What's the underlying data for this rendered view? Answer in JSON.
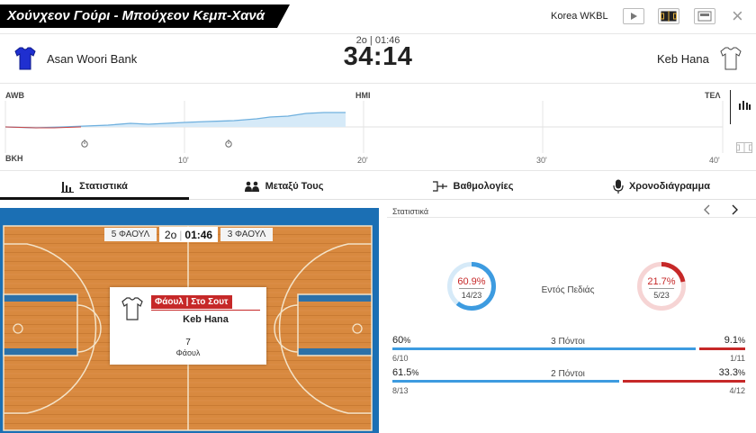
{
  "header": {
    "match_title": "Χούνχεον Γούρι - Μπούχεον Κεμπ-Χανά",
    "league": "Korea WKBL",
    "buttons": [
      "play-icon",
      "court-icon",
      "layout-icon",
      "close-icon"
    ]
  },
  "score": {
    "home_team": "Asan Woori Bank",
    "away_team": "Keb Hana",
    "period_clock": "2o | 01:46",
    "score": "34:14"
  },
  "timeline": {
    "home_abbr": "AWB",
    "away_abbr": "BKH",
    "half_label": "HMI",
    "end_label": "ΤΕΛ",
    "ticks": [
      "10'",
      "20'",
      "30'",
      "40'"
    ]
  },
  "tabs": [
    {
      "label": "Στατιστικά",
      "icon": "bar-chart-icon",
      "active": true
    },
    {
      "label": "Μεταξύ Τους",
      "icon": "people-icon",
      "active": false
    },
    {
      "label": "Βαθμολογίες",
      "icon": "bracket-icon",
      "active": false
    },
    {
      "label": "Χρονοδιάγραμμα",
      "icon": "microphone-icon",
      "active": false
    }
  ],
  "court": {
    "home_fouls": "5 ΦΑΟΥΛ",
    "period": "2o",
    "clock": "01:46",
    "away_fouls": "3 ΦΑΟΥΛ",
    "event_title": "Φάουλ | Στο Σουτ",
    "event_team": "Keb Hana",
    "event_count": "7",
    "event_count_label": "Φάουλ"
  },
  "stats": {
    "header": "Στατιστικά",
    "field_goals": {
      "label": "Εντός Πεδιάς",
      "home_pct": "60.9%",
      "home_frac": "14/23",
      "home_value": 60.9,
      "away_pct": "21.7%",
      "away_frac": "5/23",
      "away_value": 21.7
    },
    "rows": [
      {
        "label": "3 Πόντοι",
        "home_num": "60",
        "away_num": "9.1",
        "home_frac": "6/10",
        "away_frac": "1/11",
        "home_value": 60,
        "away_value": 9.1
      },
      {
        "label": "2 Πόντοι",
        "home_num": "61.5",
        "away_num": "33.3",
        "home_frac": "8/13",
        "away_frac": "4/12",
        "home_value": 61.5,
        "away_value": 33.3
      }
    ],
    "pct_sign": "%"
  },
  "colors": {
    "home": "#3d9be0",
    "away": "#c62828",
    "court_floor": "#d8893f",
    "court_border": "#1b6fb4"
  }
}
